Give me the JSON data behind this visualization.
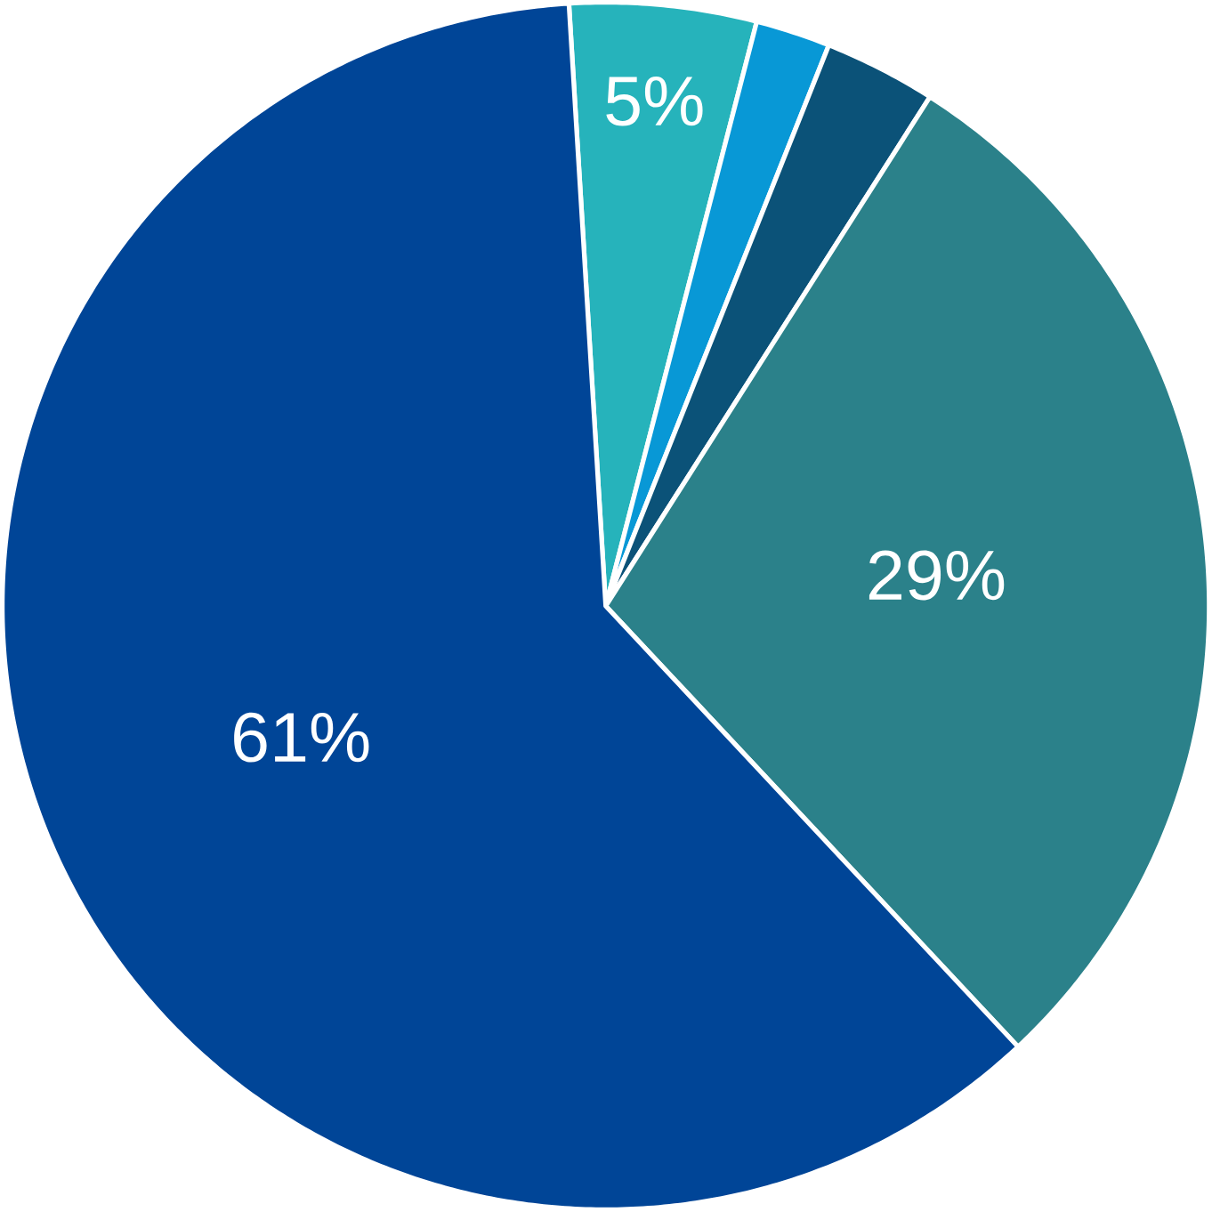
{
  "chart_data": {
    "type": "pie",
    "categories": [
      null,
      null,
      null,
      null,
      null
    ],
    "values": [
      5,
      2,
      3,
      29,
      61
    ],
    "colors": [
      "#26b3bb",
      "#0898d6",
      "#0b5278",
      "#2b818a",
      "#004597"
    ],
    "value_labels": [
      "5%",
      null,
      null,
      "29%",
      "61%"
    ]
  }
}
